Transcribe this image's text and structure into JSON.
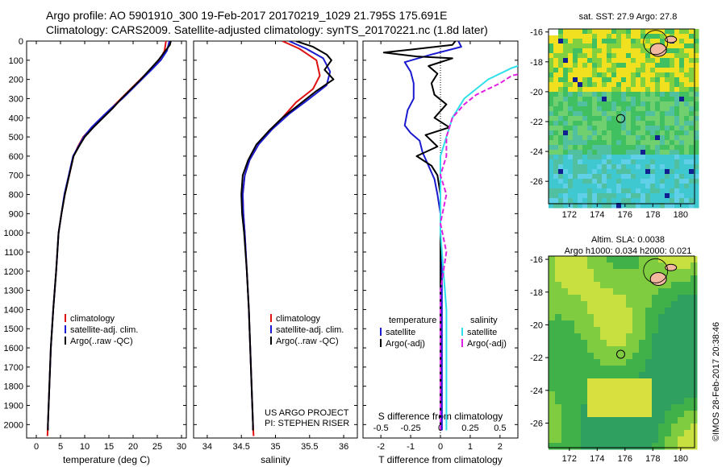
{
  "title_line1": "Argo profile: AO 5901910_300 19-Feb-2017 20170219_1029 21.795S 175.691E",
  "title_line2": "Climatology: CARS2009. Satellite-adjusted climatology: synTS_20170221.nc (1.8d later)",
  "side_text": "©IMOS 28-Feb-2017 20:38:46",
  "project_text": [
    "US ARGO PROJECT",
    "PI: STEPHEN RISER"
  ],
  "map_sst": {
    "title": "sat. SST: 27.9 Argo: 27.8"
  },
  "map_sla": {
    "title_lines": [
      "Altim. SLA: 0.0038",
      "Argo h1000: 0.034 h2000: 0.021"
    ]
  },
  "colors": {
    "climatology": "#e01010",
    "satellite": "#1a1ad0",
    "argo": "#000000",
    "sat_salinity": "#30e0e8",
    "argo_salinity": "#e020e0"
  },
  "chart_data": [
    {
      "type": "line",
      "xlabel": "temperature (deg C)",
      "ylabel": "",
      "xlim": [
        -2,
        31
      ],
      "ylim": [
        2070,
        0
      ],
      "xticks": [
        0,
        5,
        10,
        15,
        20,
        25,
        30
      ],
      "yticks": [
        0,
        100,
        200,
        300,
        400,
        500,
        600,
        700,
        800,
        900,
        1000,
        1100,
        1200,
        1300,
        1400,
        1500,
        1600,
        1700,
        1800,
        1900,
        2000
      ],
      "legend": [
        "climatology",
        "satellite-adj. clim.",
        "Argo(..raw -QC)"
      ],
      "series": [
        {
          "name": "climatology",
          "color": "#e01010",
          "points": [
            [
              26.8,
              0
            ],
            [
              26.5,
              50
            ],
            [
              25.5,
              100
            ],
            [
              23.5,
              150
            ],
            [
              21.5,
              200
            ],
            [
              19.5,
              250
            ],
            [
              17.5,
              300
            ],
            [
              15.5,
              350
            ],
            [
              13.5,
              400
            ],
            [
              11.5,
              450
            ],
            [
              9.7,
              500
            ],
            [
              8.6,
              550
            ],
            [
              7.7,
              600
            ],
            [
              6.8,
              700
            ],
            [
              5.9,
              800
            ],
            [
              5.2,
              900
            ],
            [
              4.6,
              1000
            ],
            [
              4.1,
              1200
            ],
            [
              3.5,
              1400
            ],
            [
              3.0,
              1600
            ],
            [
              2.7,
              1800
            ],
            [
              2.4,
              2000
            ],
            [
              2.3,
              2060
            ]
          ]
        },
        {
          "name": "satellite-adj. clim.",
          "color": "#1a1ad0",
          "points": [
            [
              27.5,
              0
            ],
            [
              27.0,
              50
            ],
            [
              25.7,
              100
            ],
            [
              23.8,
              150
            ],
            [
              21.8,
              200
            ],
            [
              19.8,
              250
            ],
            [
              17.8,
              300
            ],
            [
              15.5,
              350
            ],
            [
              13.4,
              400
            ],
            [
              11.4,
              450
            ],
            [
              9.8,
              500
            ],
            [
              8.7,
              550
            ],
            [
              7.6,
              600
            ],
            [
              6.7,
              700
            ],
            [
              5.8,
              800
            ],
            [
              5.2,
              900
            ],
            [
              4.6,
              1000
            ],
            [
              4.1,
              1200
            ],
            [
              3.5,
              1400
            ],
            [
              3.0,
              1600
            ],
            [
              2.7,
              1800
            ],
            [
              2.4,
              2000
            ],
            [
              2.4,
              2030
            ]
          ]
        },
        {
          "name": "Argo(..raw -QC)",
          "color": "#000000",
          "points": [
            [
              27.8,
              0
            ],
            [
              27.6,
              20
            ],
            [
              26.4,
              60
            ],
            [
              25.2,
              100
            ],
            [
              23.4,
              150
            ],
            [
              21.6,
              200
            ],
            [
              19.6,
              250
            ],
            [
              17.6,
              300
            ],
            [
              15.8,
              350
            ],
            [
              13.8,
              400
            ],
            [
              11.8,
              450
            ],
            [
              10.0,
              500
            ],
            [
              8.8,
              550
            ],
            [
              7.7,
              600
            ],
            [
              6.8,
              700
            ],
            [
              5.9,
              800
            ],
            [
              5.2,
              900
            ],
            [
              4.6,
              1000
            ],
            [
              4.1,
              1200
            ],
            [
              3.5,
              1400
            ],
            [
              3.0,
              1600
            ],
            [
              2.7,
              1800
            ],
            [
              2.4,
              2000
            ],
            [
              2.4,
              2030
            ]
          ]
        }
      ]
    },
    {
      "type": "line",
      "xlabel": "salinity",
      "ylabel": "",
      "xlim": [
        33.8,
        36.2
      ],
      "ylim": [
        2070,
        0
      ],
      "xticks": [
        34,
        34.5,
        35,
        35.5,
        36
      ],
      "xticklabels": [
        "34",
        "34.5",
        "35",
        "35.5",
        "36"
      ],
      "legend": [
        "climatology",
        "satellite-adj. clim.",
        "Argo(..raw -QC)"
      ],
      "series": [
        {
          "name": "climatology",
          "color": "#e01010",
          "points": [
            [
              35.1,
              0
            ],
            [
              35.35,
              40
            ],
            [
              35.6,
              100
            ],
            [
              35.65,
              180
            ],
            [
              35.55,
              250
            ],
            [
              35.3,
              320
            ],
            [
              35.1,
              400
            ],
            [
              34.9,
              470
            ],
            [
              34.75,
              540
            ],
            [
              34.62,
              620
            ],
            [
              34.55,
              700
            ],
            [
              34.52,
              800
            ],
            [
              34.53,
              900
            ],
            [
              34.55,
              1000
            ],
            [
              34.58,
              1200
            ],
            [
              34.61,
              1400
            ],
            [
              34.63,
              1600
            ],
            [
              34.65,
              1800
            ],
            [
              34.67,
              2000
            ],
            [
              34.68,
              2060
            ]
          ]
        },
        {
          "name": "satellite-adj. clim.",
          "color": "#1a1ad0",
          "points": [
            [
              35.2,
              0
            ],
            [
              35.45,
              40
            ],
            [
              35.7,
              90
            ],
            [
              35.8,
              160
            ],
            [
              35.75,
              230
            ],
            [
              35.5,
              300
            ],
            [
              35.2,
              380
            ],
            [
              34.95,
              460
            ],
            [
              34.75,
              540
            ],
            [
              34.62,
              620
            ],
            [
              34.55,
              700
            ],
            [
              34.52,
              800
            ],
            [
              34.53,
              900
            ],
            [
              34.55,
              1000
            ],
            [
              34.58,
              1200
            ],
            [
              34.61,
              1400
            ],
            [
              34.63,
              1600
            ],
            [
              34.65,
              1800
            ],
            [
              34.67,
              2000
            ],
            [
              34.67,
              2030
            ]
          ]
        },
        {
          "name": "Argo(..raw -QC)",
          "color": "#000000",
          "points": [
            [
              35.3,
              0
            ],
            [
              35.55,
              30
            ],
            [
              35.75,
              70
            ],
            [
              35.82,
              100
            ],
            [
              35.72,
              150
            ],
            [
              35.85,
              200
            ],
            [
              35.6,
              260
            ],
            [
              35.35,
              330
            ],
            [
              35.1,
              400
            ],
            [
              34.9,
              470
            ],
            [
              34.72,
              540
            ],
            [
              34.6,
              620
            ],
            [
              34.52,
              700
            ],
            [
              34.5,
              800
            ],
            [
              34.51,
              900
            ],
            [
              34.54,
              1000
            ],
            [
              34.58,
              1200
            ],
            [
              34.61,
              1400
            ],
            [
              34.63,
              1600
            ],
            [
              34.65,
              1800
            ],
            [
              34.67,
              2000
            ],
            [
              34.67,
              2030
            ]
          ]
        }
      ]
    },
    {
      "type": "line",
      "xlabel": "T difference from climatology",
      "xlabel2": "S difference from climatology",
      "xlim": [
        -2.6,
        2.6
      ],
      "ylim": [
        2070,
        0
      ],
      "xticks": [
        -2,
        -1,
        0,
        1,
        2
      ],
      "xticklabels": [
        "-2",
        "-1",
        "0",
        "1",
        "2"
      ],
      "xticks2": [
        -0.5,
        -0.25,
        0,
        0.25,
        0.5
      ],
      "xticklabels2": [
        "-0.5",
        "-0.25",
        "0",
        "0.25",
        "0.5"
      ],
      "legend_headers": [
        "temperature",
        "salinity"
      ],
      "legend": [
        "satellite",
        "Argo(-adj)",
        "satellite",
        "Argo(-adj)"
      ],
      "series": [
        {
          "name": "satellite",
          "color": "#1a1ad0",
          "points": [
            [
              0.6,
              0
            ],
            [
              0.7,
              30
            ],
            [
              -0.3,
              70
            ],
            [
              -1.2,
              110
            ],
            [
              -1.0,
              160
            ],
            [
              -0.9,
              220
            ],
            [
              -0.9,
              300
            ],
            [
              -1.1,
              360
            ],
            [
              -1.2,
              440
            ],
            [
              -1.0,
              480
            ],
            [
              -0.7,
              520
            ],
            [
              -0.6,
              580
            ],
            [
              -0.4,
              650
            ],
            [
              -0.2,
              720
            ],
            [
              -0.1,
              800
            ],
            [
              0.0,
              900
            ],
            [
              0.0,
              1000
            ],
            [
              0.05,
              1200
            ],
            [
              0.05,
              1600
            ],
            [
              0.05,
              2030
            ]
          ]
        },
        {
          "name": "Argo(-adj)",
          "color": "#000000",
          "points": [
            [
              0.5,
              0
            ],
            [
              0.4,
              20
            ],
            [
              -1.9,
              60
            ],
            [
              -0.8,
              80
            ],
            [
              0.4,
              90
            ],
            [
              -0.4,
              130
            ],
            [
              -0.1,
              170
            ],
            [
              -0.3,
              220
            ],
            [
              -0.2,
              280
            ],
            [
              0.2,
              330
            ],
            [
              -0.2,
              400
            ],
            [
              0.3,
              450
            ],
            [
              -0.5,
              490
            ],
            [
              -0.1,
              550
            ],
            [
              -0.8,
              600
            ],
            [
              -0.3,
              650
            ],
            [
              -0.1,
              700
            ],
            [
              0.0,
              800
            ],
            [
              0.0,
              1000
            ],
            [
              0.0,
              1400
            ],
            [
              0.0,
              2030
            ]
          ]
        },
        {
          "name": "satellite",
          "color": "#30e0e8",
          "points": [
            [
              1.0,
              0
            ],
            [
              1.4,
              30
            ],
            [
              0.8,
              100
            ],
            [
              0.6,
              140
            ],
            [
              0.4,
              200
            ],
            [
              0.2,
              300
            ],
            [
              0.1,
              400
            ],
            [
              0.05,
              500
            ],
            [
              0.0,
              600
            ],
            [
              0.0,
              1000
            ],
            [
              0.05,
              1400
            ],
            [
              0.05,
              2030
            ]
          ]
        },
        {
          "name": "Argo(-adj)",
          "color": "#e020e0",
          "points": [
            [
              1.5,
              0
            ],
            [
              1.3,
              10
            ],
            [
              1.9,
              60
            ],
            [
              1.5,
              110
            ],
            [
              0.9,
              140
            ],
            [
              0.6,
              180
            ],
            [
              0.5,
              220
            ],
            [
              0.3,
              280
            ],
            [
              0.2,
              330
            ],
            [
              0.1,
              400
            ],
            [
              0.05,
              500
            ],
            [
              0.05,
              600
            ],
            [
              0.0,
              700
            ],
            [
              0.05,
              800
            ],
            [
              0.0,
              950
            ],
            [
              0.05,
              1100
            ],
            [
              0.0,
              1300
            ],
            [
              0.0,
              1600
            ],
            [
              0.0,
              2030
            ]
          ]
        }
      ]
    },
    {
      "type": "heatmap",
      "xlim": [
        170.5,
        181
      ],
      "ylim": [
        -27.5,
        -15.8
      ],
      "xticks": [
        172,
        174,
        176,
        178,
        180
      ],
      "yticks": [
        -16,
        -18,
        -20,
        -22,
        -24,
        -26
      ],
      "marker": [
        175.691,
        -21.795
      ]
    },
    {
      "type": "heatmap",
      "xlim": [
        170.5,
        181
      ],
      "ylim": [
        -27.5,
        -15.8
      ],
      "xticks": [
        172,
        174,
        176,
        178,
        180
      ],
      "yticks": [
        -16,
        -18,
        -20,
        -22,
        -24,
        -26
      ],
      "marker": [
        175.691,
        -21.795
      ]
    }
  ]
}
